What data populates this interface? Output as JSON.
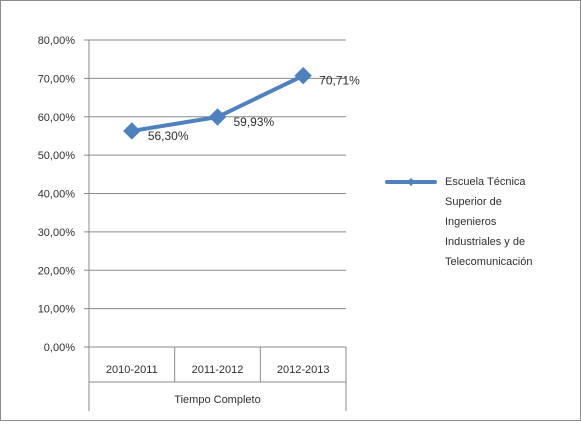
{
  "chart_data": {
    "type": "line",
    "title": "",
    "group_label": "Tiempo Completo",
    "categories": [
      "2010-2011",
      "2011-2012",
      "2012-2013"
    ],
    "y_ticks": [
      "0,00%",
      "10,00%",
      "20,00%",
      "30,00%",
      "40,00%",
      "50,00%",
      "60,00%",
      "70,00%",
      "80,00%"
    ],
    "ylim": [
      0,
      80
    ],
    "grid": true,
    "legend_position": "right",
    "series": [
      {
        "name": "Escuela Técnica Superior de Ingenieros Industriales y de Telecomunicación",
        "legend_lines": [
          "Escuela Técnica",
          "Superior de",
          "Ingenieros",
          "Industriales y de",
          "Telecomunicación"
        ],
        "values": [
          56.3,
          59.93,
          70.71
        ],
        "data_labels": [
          "56,30%",
          "59,93%",
          "70,71%"
        ],
        "color": "#4f81bd",
        "marker": "diamond"
      }
    ]
  }
}
